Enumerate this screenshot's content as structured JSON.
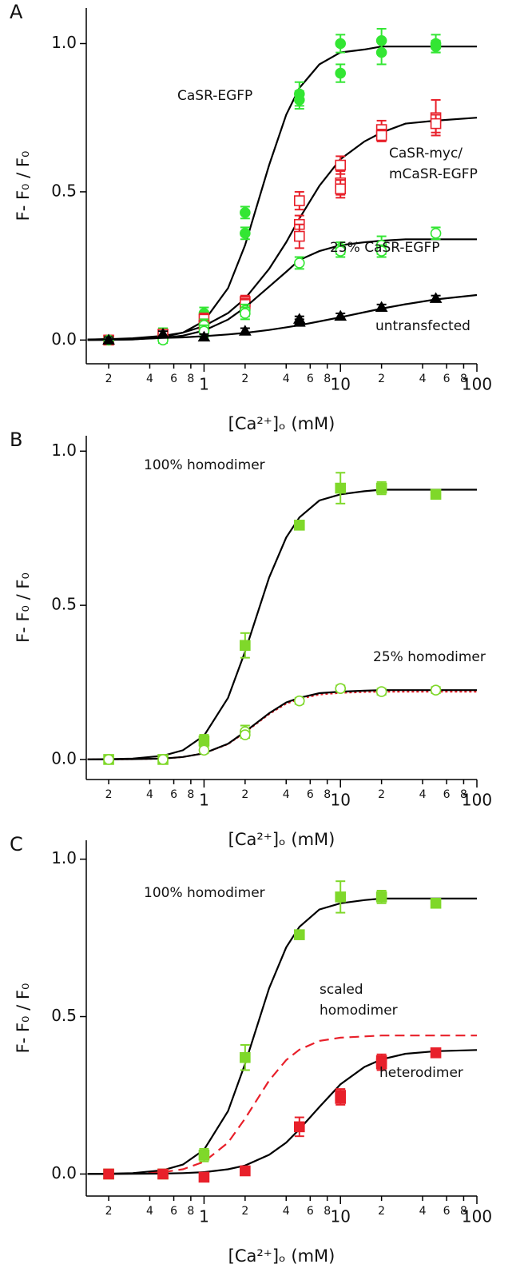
{
  "chart_data": [
    {
      "type": "scatter",
      "panel": "A",
      "xlabel": "[Ca²⁺]ₒ (mM)",
      "ylabel": "F- F₀ / F₀",
      "log_x": true,
      "xlim": [
        0.137,
        100
      ],
      "ylim": [
        -0.08,
        1.12
      ],
      "xticks": [
        {
          "value": 0.2,
          "label": "2"
        },
        {
          "value": 0.4,
          "label": "4"
        },
        {
          "value": 0.6,
          "label": "6"
        },
        {
          "value": 0.8,
          "label": "8"
        },
        1,
        {
          "value": 2,
          "label": "2"
        },
        {
          "value": 4,
          "label": "4"
        },
        {
          "value": 6,
          "label": "6"
        },
        {
          "value": 8,
          "label": "8"
        },
        10,
        {
          "value": 20,
          "label": "2"
        },
        {
          "value": 40,
          "label": "4"
        },
        {
          "value": 60,
          "label": "6"
        },
        {
          "value": 80,
          "label": "8"
        },
        100
      ],
      "yticks": [
        {
          "value": 0,
          "label": "0.0"
        },
        {
          "value": 0.5,
          "label": "0.5"
        },
        {
          "value": 1,
          "label": "1.0"
        }
      ],
      "series": [
        {
          "name": "CaSR-EGFP",
          "color": "#33e633",
          "marker": "circle",
          "x": [
            0.2,
            0.5,
            1,
            1,
            2,
            2,
            5,
            5,
            10,
            10,
            20,
            20,
            50,
            50
          ],
          "values": [
            0,
            0.02,
            0.09,
            0.06,
            0.43,
            0.36,
            0.83,
            0.81,
            1.0,
            0.9,
            1.01,
            0.97,
            1.0,
            0.99
          ],
          "errors": [
            0.01,
            0.02,
            0.02,
            0.02,
            0.02,
            0.02,
            0.04,
            0.03,
            0.03,
            0.03,
            0.04,
            0.04,
            0.03,
            0.02
          ],
          "fit": {
            "color": "#000000",
            "x": [
              0.14,
              0.2,
              0.3,
              0.5,
              0.7,
              1,
              1.5,
              2,
              3,
              4,
              5,
              7,
              10,
              15,
              20,
              30,
              50,
              100
            ],
            "values": [
              0,
              0.001,
              0.002,
              0.01,
              0.025,
              0.064,
              0.175,
              0.32,
              0.59,
              0.76,
              0.85,
              0.93,
              0.97,
              0.98,
              0.99,
              0.99,
              0.99,
              0.99
            ]
          }
        },
        {
          "name": "CaSR-myc/\nmCaSR-EGFP",
          "color": "#e8202a",
          "marker": "square-open",
          "x": [
            0.2,
            0.5,
            1,
            1,
            2,
            2,
            5,
            5,
            5,
            10,
            10,
            10,
            20,
            20,
            50,
            50
          ],
          "values": [
            0,
            0.02,
            0.07,
            0.05,
            0.13,
            0.12,
            0.47,
            0.39,
            0.35,
            0.59,
            0.53,
            0.51,
            0.71,
            0.69,
            0.75,
            0.73
          ],
          "errors": [
            0.01,
            0.01,
            0.02,
            0.02,
            0.02,
            0.02,
            0.03,
            0.03,
            0.04,
            0.03,
            0.04,
            0.03,
            0.03,
            0.02,
            0.06,
            0.03
          ],
          "fit": {
            "color": "#000000",
            "x": [
              0.14,
              0.2,
              0.3,
              0.5,
              0.7,
              1,
              1.5,
              2,
              3,
              4,
              5,
              7,
              10,
              15,
              20,
              30,
              50,
              100
            ],
            "values": [
              0.0015,
              0.003,
              0.006,
              0.014,
              0.025,
              0.047,
              0.091,
              0.14,
              0.24,
              0.33,
              0.41,
              0.52,
              0.61,
              0.67,
              0.7,
              0.73,
              0.74,
              0.75
            ]
          }
        },
        {
          "name": "25% CaSR-EGFP",
          "color": "#33e633",
          "marker": "circle-open",
          "x": [
            0.2,
            0.5,
            1,
            1,
            2,
            2,
            5,
            10,
            10,
            20,
            20,
            50
          ],
          "values": [
            0,
            0,
            0.05,
            0.03,
            0.1,
            0.09,
            0.26,
            0.31,
            0.3,
            0.32,
            0.3,
            0.36
          ],
          "errors": [
            0.01,
            0.01,
            0.02,
            0.02,
            0.02,
            0.02,
            0.02,
            0.02,
            0.02,
            0.03,
            0.02,
            0.02
          ],
          "fit": {
            "color": "#000000",
            "x": [
              0.14,
              0.2,
              0.3,
              0.5,
              0.7,
              1,
              1.5,
              2,
              3,
              4,
              5,
              7,
              10,
              15,
              20,
              30,
              50,
              100
            ],
            "values": [
              0.0005,
              0.001,
              0.0025,
              0.0075,
              0.015,
              0.032,
              0.069,
              0.11,
              0.18,
              0.23,
              0.27,
              0.3,
              0.32,
              0.33,
              0.335,
              0.34,
              0.34,
              0.34
            ]
          }
        },
        {
          "name": "untransfected",
          "color": "#000000",
          "marker": "triangle",
          "x": [
            0.2,
            0.5,
            1,
            2,
            5,
            5,
            10,
            20,
            50
          ],
          "values": [
            0,
            0.02,
            0.01,
            0.03,
            0.07,
            0.06,
            0.08,
            0.11,
            0.14
          ],
          "errors": [
            0.01,
            0.01,
            0.01,
            0.01,
            0.01,
            0.01,
            0.01,
            0.01,
            0.01
          ],
          "fit": {
            "color": "#000000",
            "x": [
              0.14,
              0.2,
              0.3,
              0.5,
              0.7,
              1,
              1.5,
              2,
              3,
              4,
              5,
              7,
              10,
              15,
              20,
              30,
              50,
              100
            ],
            "values": [
              0.002,
              0.003,
              0.004,
              0.007,
              0.009,
              0.013,
              0.019,
              0.024,
              0.034,
              0.043,
              0.05,
              0.063,
              0.077,
              0.094,
              0.106,
              0.121,
              0.137,
              0.152
            ]
          }
        }
      ]
    },
    {
      "type": "scatter",
      "panel": "B",
      "xlabel": "[Ca²⁺]ₒ (mM)",
      "ylabel": "F- F₀ / F₀",
      "log_x": true,
      "xlim": [
        0.137,
        100
      ],
      "ylim": [
        -0.065,
        1.05
      ],
      "xticks": [
        {
          "value": 0.2,
          "label": "2"
        },
        {
          "value": 0.4,
          "label": "4"
        },
        {
          "value": 0.6,
          "label": "6"
        },
        {
          "value": 0.8,
          "label": "8"
        },
        1,
        {
          "value": 2,
          "label": "2"
        },
        {
          "value": 4,
          "label": "4"
        },
        {
          "value": 6,
          "label": "6"
        },
        {
          "value": 8,
          "label": "8"
        },
        10,
        {
          "value": 20,
          "label": "2"
        },
        {
          "value": 40,
          "label": "4"
        },
        {
          "value": 60,
          "label": "6"
        },
        {
          "value": 80,
          "label": "8"
        },
        100
      ],
      "yticks": [
        {
          "value": 0,
          "label": "0.0"
        },
        {
          "value": 0.5,
          "label": "0.5"
        },
        {
          "value": 1,
          "label": "1.0"
        }
      ],
      "series": [
        {
          "name": "100% homodimer",
          "color": "#7fd82a",
          "marker": "square",
          "x": [
            0.2,
            0.5,
            1,
            2,
            5,
            10,
            20,
            50
          ],
          "values": [
            0,
            0,
            0.06,
            0.37,
            0.76,
            0.88,
            0.88,
            0.86
          ],
          "errors": [
            0.005,
            0.005,
            0.02,
            0.04,
            0.01,
            0.05,
            0.02,
            0.01
          ],
          "fit": {
            "color": "#000000",
            "x": [
              0.14,
              0.2,
              0.3,
              0.5,
              0.7,
              1,
              1.5,
              2,
              3,
              4,
              5,
              7,
              10,
              15,
              20,
              30,
              50,
              100
            ],
            "values": [
              0,
              0.001,
              0.003,
              0.012,
              0.03,
              0.077,
              0.2,
              0.35,
              0.59,
              0.72,
              0.785,
              0.84,
              0.86,
              0.87,
              0.875,
              0.875,
              0.875,
              0.875
            ]
          }
        },
        {
          "name": "25% homodimer",
          "color": "#7fd82a",
          "marker": "circle-open",
          "x": [
            0.2,
            0.5,
            1,
            2,
            2,
            5,
            10,
            20,
            50
          ],
          "values": [
            0,
            0,
            0.03,
            0.09,
            0.08,
            0.19,
            0.23,
            0.22,
            0.225
          ],
          "errors": [
            0.005,
            0.005,
            0.01,
            0.02,
            0.01,
            0.01,
            0.01,
            0.01,
            0.01
          ],
          "fit": {
            "color": "#000000",
            "x": [
              0.14,
              0.2,
              0.3,
              0.5,
              0.7,
              1,
              1.5,
              2,
              3,
              4,
              5,
              7,
              10,
              15,
              20,
              30,
              50,
              100
            ],
            "values": [
              0,
              0.0003,
              0.001,
              0.003,
              0.008,
              0.02,
              0.051,
              0.09,
              0.15,
              0.185,
              0.2,
              0.215,
              0.22,
              0.223,
              0.225,
              0.225,
              0.225,
              0.225
            ]
          }
        }
      ],
      "curves": [
        {
          "color": "#e8202a",
          "style": "dotted",
          "x": [
            0.14,
            0.2,
            0.3,
            0.5,
            0.7,
            1,
            1.5,
            2,
            3,
            4,
            5,
            7,
            10,
            15,
            20,
            30,
            50,
            100
          ],
          "values": [
            0,
            0.0003,
            0.001,
            0.003,
            0.008,
            0.02,
            0.05,
            0.088,
            0.147,
            0.181,
            0.196,
            0.211,
            0.216,
            0.219,
            0.22,
            0.22,
            0.22,
            0.22
          ]
        }
      ]
    },
    {
      "type": "scatter",
      "panel": "C",
      "xlabel": "[Ca²⁺]ₒ (mM)",
      "ylabel": "F- F₀ / F₀",
      "log_x": true,
      "xlim": [
        0.137,
        100
      ],
      "ylim": [
        -0.07,
        1.06
      ],
      "xticks": [
        {
          "value": 0.2,
          "label": "2"
        },
        {
          "value": 0.4,
          "label": "4"
        },
        {
          "value": 0.6,
          "label": "6"
        },
        {
          "value": 0.8,
          "label": "8"
        },
        1,
        {
          "value": 2,
          "label": "2"
        },
        {
          "value": 4,
          "label": "4"
        },
        {
          "value": 6,
          "label": "6"
        },
        {
          "value": 8,
          "label": "8"
        },
        10,
        {
          "value": 20,
          "label": "2"
        },
        {
          "value": 40,
          "label": "4"
        },
        {
          "value": 60,
          "label": "6"
        },
        {
          "value": 80,
          "label": "8"
        },
        100
      ],
      "yticks": [
        {
          "value": 0,
          "label": "0.0"
        },
        {
          "value": 0.5,
          "label": "0.5"
        },
        {
          "value": 1,
          "label": "1.0"
        }
      ],
      "series": [
        {
          "name": "100% homodimer",
          "color": "#7fd82a",
          "marker": "square",
          "x": [
            0.2,
            0.5,
            1,
            2,
            5,
            10,
            20,
            50
          ],
          "values": [
            0,
            0,
            0.06,
            0.37,
            0.76,
            0.88,
            0.88,
            0.86
          ],
          "errors": [
            0.005,
            0.005,
            0.02,
            0.04,
            0.01,
            0.05,
            0.02,
            0.01
          ],
          "fit": {
            "color": "#000000",
            "x": [
              0.14,
              0.2,
              0.3,
              0.5,
              0.7,
              1,
              1.5,
              2,
              3,
              4,
              5,
              7,
              10,
              15,
              20,
              30,
              50,
              100
            ],
            "values": [
              0,
              0.001,
              0.003,
              0.012,
              0.03,
              0.077,
              0.2,
              0.35,
              0.59,
              0.72,
              0.785,
              0.84,
              0.86,
              0.87,
              0.875,
              0.875,
              0.875,
              0.875
            ]
          }
        },
        {
          "name": "heterodimer",
          "color": "#e8202a",
          "marker": "square",
          "x": [
            0.2,
            0.5,
            1,
            2,
            5,
            10,
            10,
            20,
            20,
            50
          ],
          "values": [
            0,
            0,
            -0.01,
            0.01,
            0.15,
            0.24,
            0.25,
            0.36,
            0.35,
            0.385
          ],
          "errors": [
            0.01,
            0.01,
            0.01,
            0.01,
            0.03,
            0.02,
            0.02,
            0.02,
            0.02,
            0.01
          ],
          "fit": {
            "color": "#000000",
            "x": [
              0.14,
              0.2,
              0.3,
              0.5,
              0.7,
              1,
              1.5,
              2,
              3,
              4,
              5,
              7,
              10,
              15,
              20,
              30,
              50,
              100
            ],
            "values": [
              0,
              0.0002,
              0.0005,
              0.0014,
              0.003,
              0.006,
              0.015,
              0.027,
              0.061,
              0.1,
              0.142,
              0.213,
              0.285,
              0.34,
              0.364,
              0.382,
              0.39,
              0.394
            ]
          }
        }
      ],
      "curves": [
        {
          "name": "scaled\nhomodimer",
          "color": "#e8202a",
          "style": "dashed",
          "x": [
            0.14,
            0.2,
            0.3,
            0.5,
            0.7,
            1,
            1.5,
            2,
            3,
            4,
            5,
            7,
            10,
            15,
            20,
            30,
            50,
            100
          ],
          "values": [
            0,
            0.0005,
            0.0015,
            0.006,
            0.015,
            0.039,
            0.1,
            0.176,
            0.297,
            0.362,
            0.395,
            0.423,
            0.433,
            0.437,
            0.44,
            0.44,
            0.44,
            0.44
          ]
        }
      ]
    }
  ]
}
